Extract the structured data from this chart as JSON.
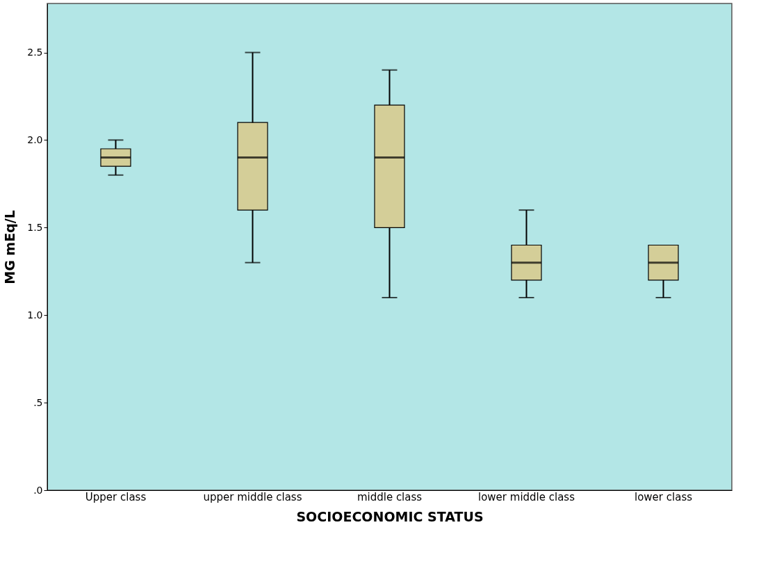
{
  "chart_data": {
    "type": "box",
    "xlabel": "SOCIOECONOMIC STATUS",
    "ylabel": "MG mEq/L",
    "categories": [
      "Upper class",
      "upper middle class",
      "middle class",
      "lower middle class",
      "lower class"
    ],
    "ylim": [
      0,
      2.78
    ],
    "yticks": [
      {
        "value": 0,
        "label": ".0"
      },
      {
        "value": 0.5,
        "label": ".5"
      },
      {
        "value": 1,
        "label": "1.0"
      },
      {
        "value": 1.5,
        "label": "1.5"
      },
      {
        "value": 2,
        "label": "2.0"
      },
      {
        "value": 2.5,
        "label": "2.5"
      }
    ],
    "grid": false,
    "series": [
      {
        "color": "#d4ce98",
        "boxes": [
          {
            "low": 1.8,
            "q1": 1.85,
            "median": 1.9,
            "q3": 1.95,
            "high": 2.0
          },
          {
            "low": 1.3,
            "q1": 1.6,
            "median": 1.9,
            "q3": 2.1,
            "high": 2.5
          },
          {
            "low": 1.1,
            "q1": 1.5,
            "median": 1.9,
            "q3": 2.2,
            "high": 2.4
          },
          {
            "low": 1.1,
            "q1": 1.2,
            "median": 1.3,
            "q3": 1.4,
            "high": 1.6
          },
          {
            "low": 1.1,
            "q1": 1.2,
            "median": 1.3,
            "q3": 1.4,
            "high": 1.4
          }
        ]
      }
    ]
  }
}
